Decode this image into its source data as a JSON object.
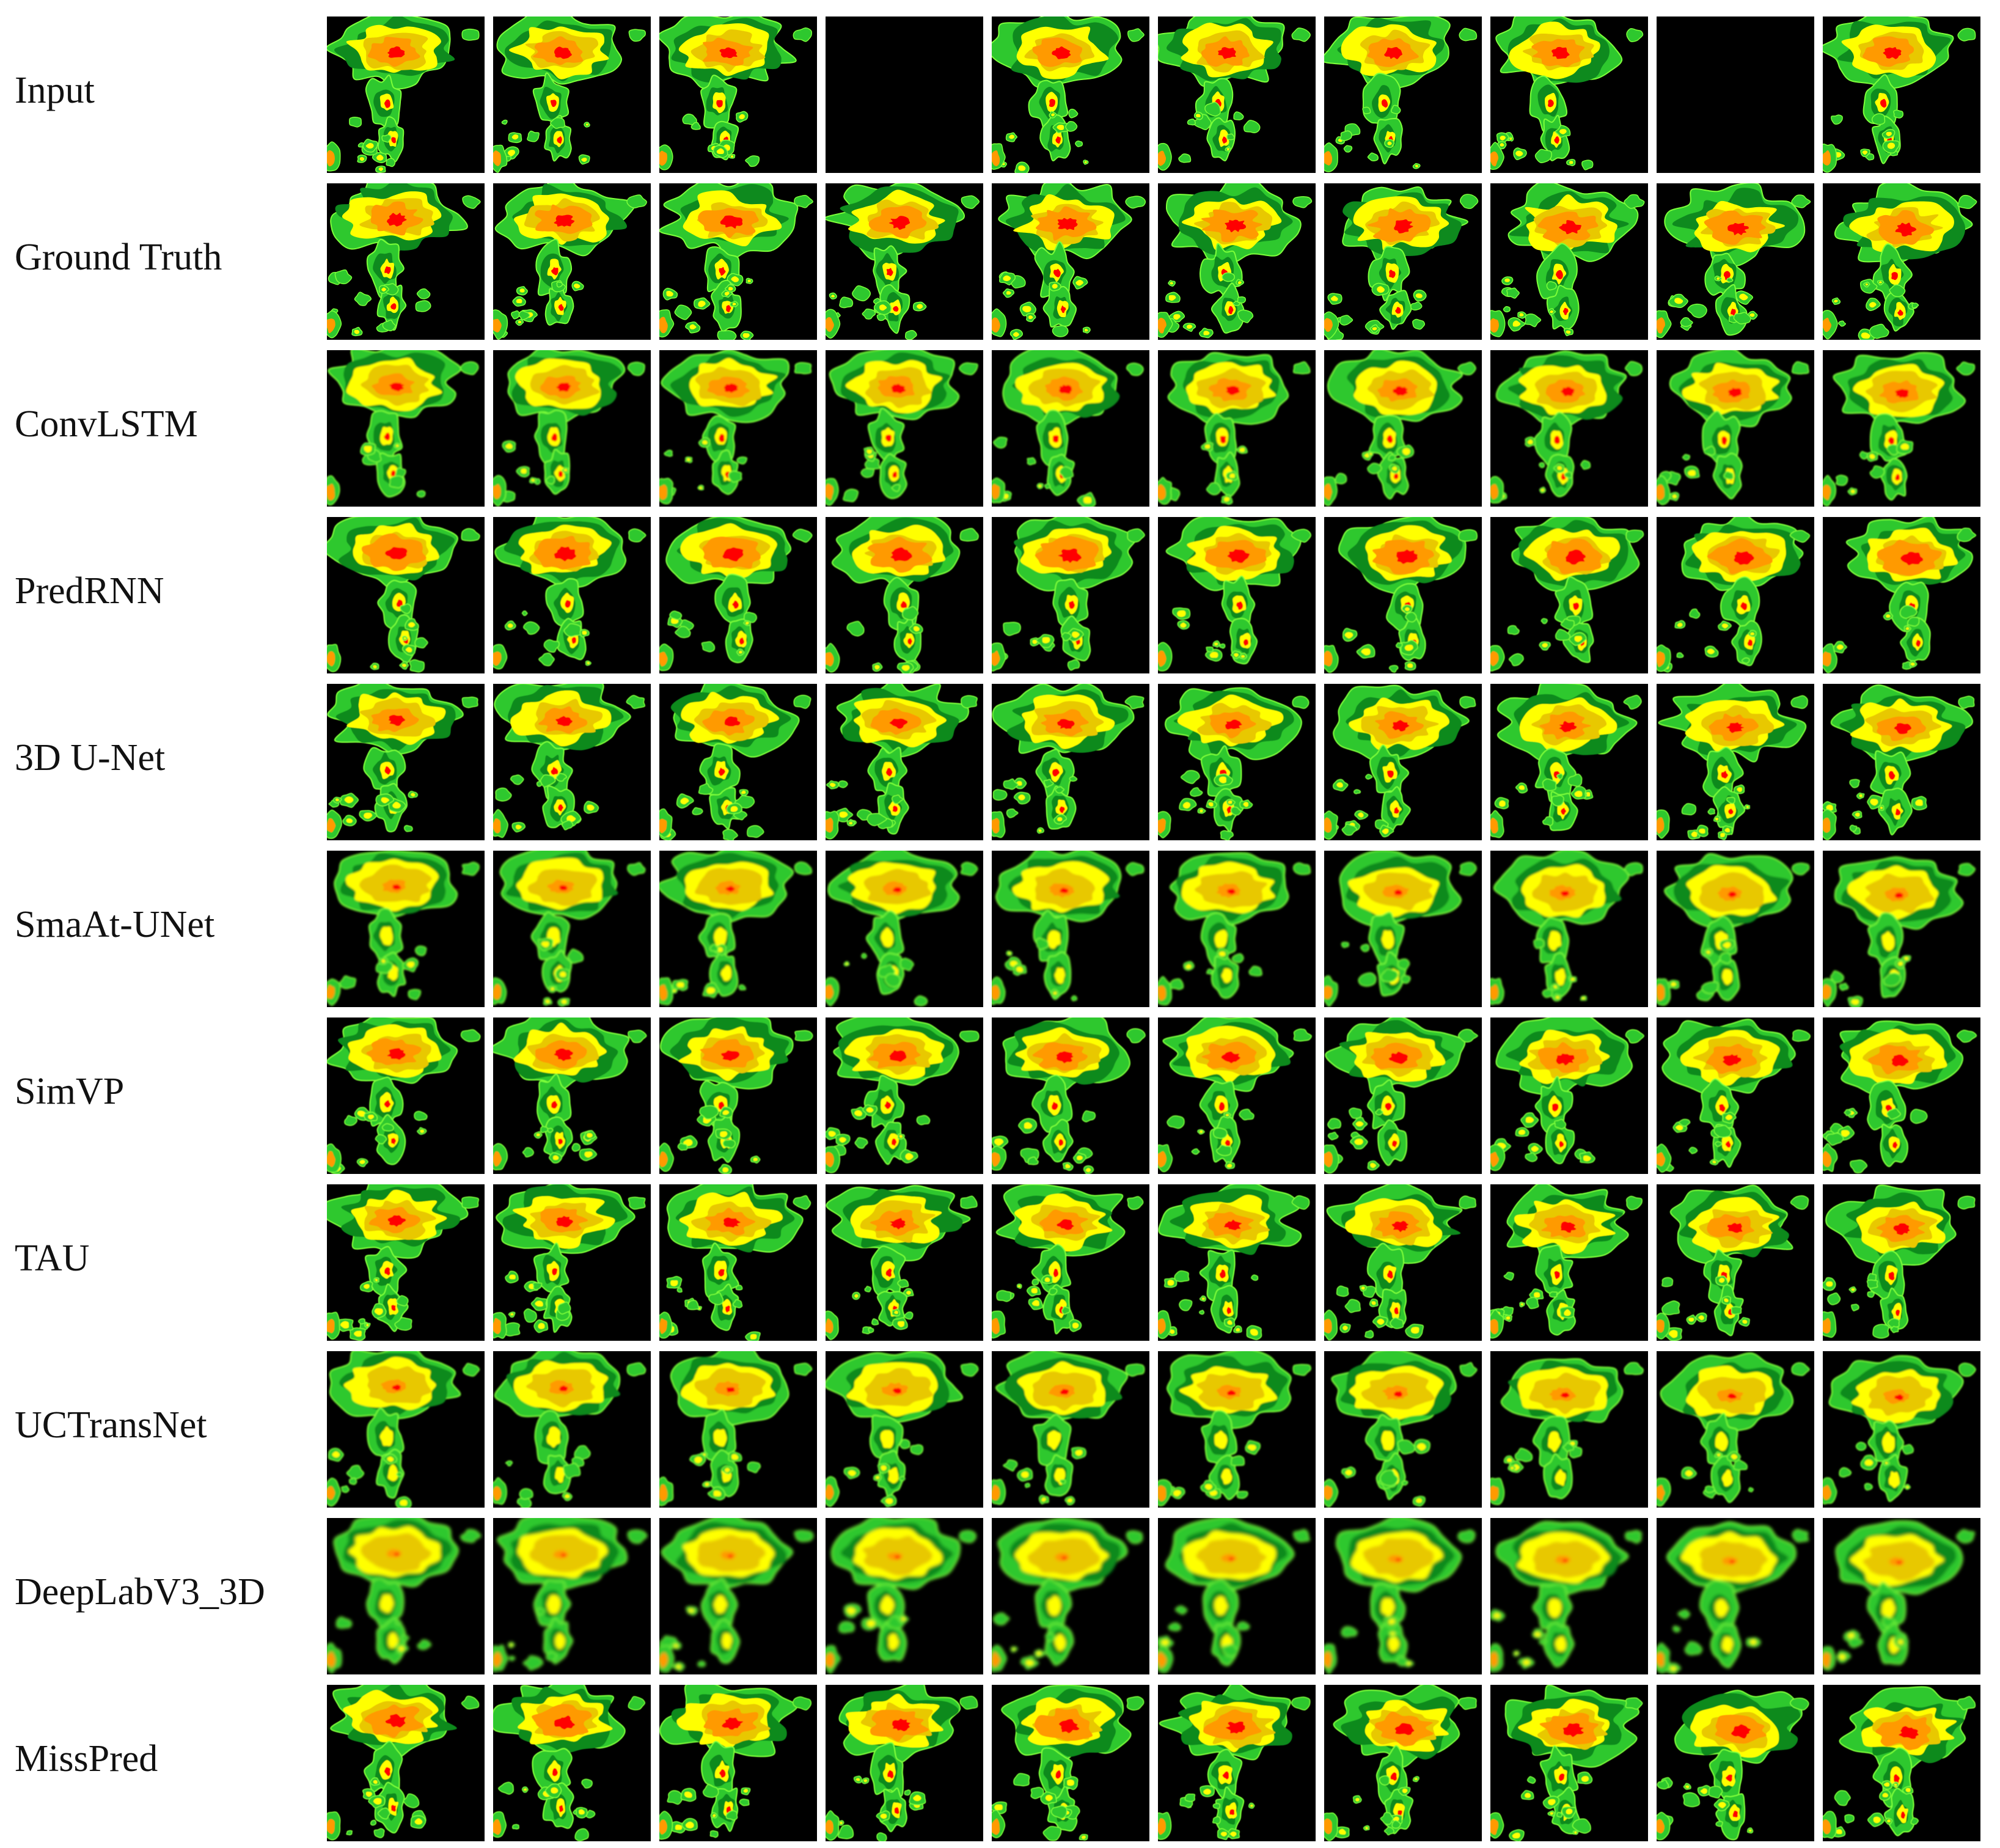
{
  "rows": [
    {
      "label": "Input",
      "missing_frames": [
        4,
        9
      ]
    },
    {
      "label": "Ground Truth",
      "missing_frames": []
    },
    {
      "label": "ConvLSTM",
      "missing_frames": []
    },
    {
      "label": "PredRNN",
      "missing_frames": []
    },
    {
      "label": "3D U-Net",
      "missing_frames": []
    },
    {
      "label": "SmaAt-UNet",
      "missing_frames": []
    },
    {
      "label": "SimVP",
      "missing_frames": []
    },
    {
      "label": "TAU",
      "missing_frames": []
    },
    {
      "label": "UCTransNet",
      "missing_frames": []
    },
    {
      "label": "DeepLabV3_3D",
      "missing_frames": []
    },
    {
      "label": "MissPred",
      "missing_frames": []
    }
  ],
  "frames_per_row": 10,
  "colors": {
    "background": "#000000",
    "edge": "#7CFF3A",
    "light_green": "#2EC82E",
    "dark_green": "#0E8A1E",
    "yellow": "#FFFF00",
    "gold": "#E8C800",
    "orange": "#FF9A00",
    "red": "#FF0000"
  }
}
